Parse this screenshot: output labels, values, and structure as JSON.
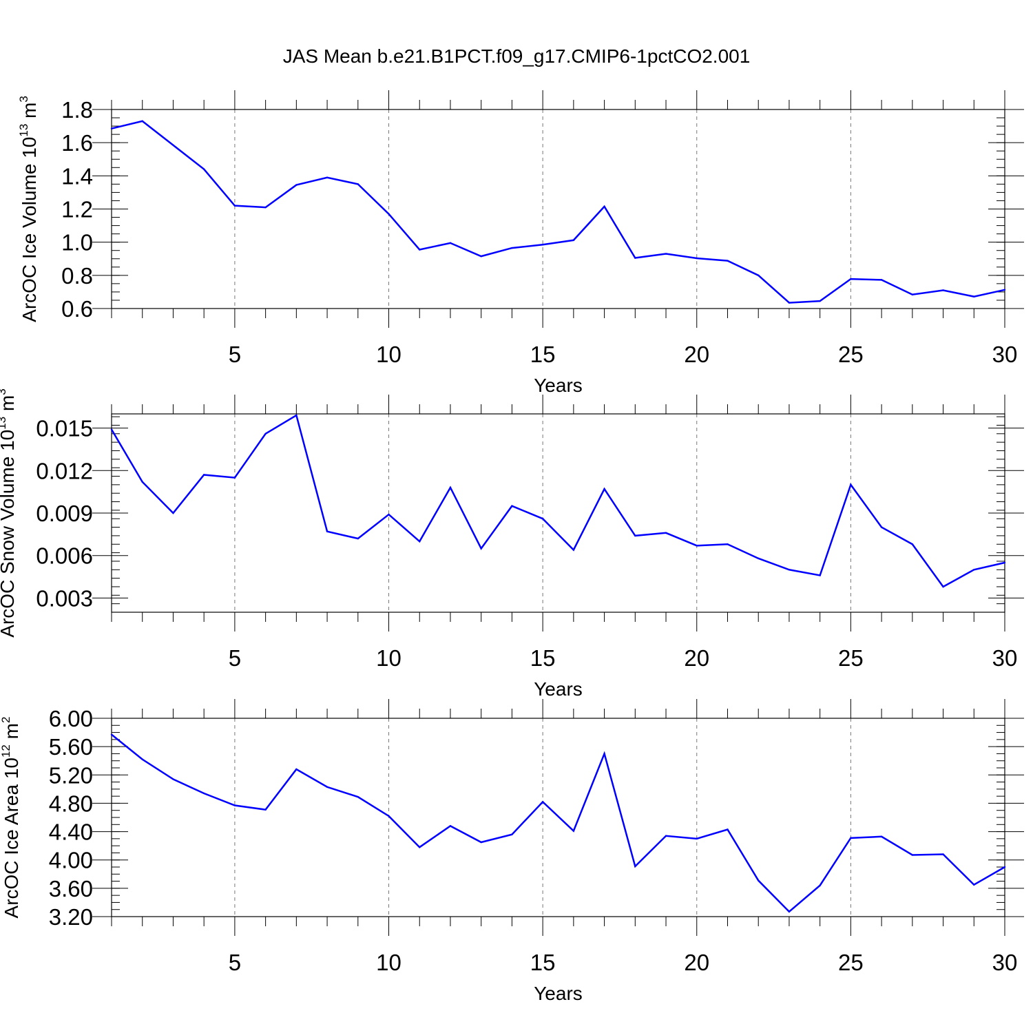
{
  "figure": {
    "title": "JAS Mean b.e21.B1PCT.f09_g17.CMIP6-1pctCO2.001",
    "line_color": "#0000ff",
    "grid_color": "#777777",
    "axis_color": "#000000"
  },
  "chart_data": [
    {
      "type": "line",
      "title": "",
      "xlabel": "Years",
      "ylabel_parts": [
        "ArcOC Ice Volume 10",
        "13",
        " m",
        "3"
      ],
      "xlim": [
        1,
        30
      ],
      "ylim": [
        0.6,
        1.8
      ],
      "xticks": [
        5,
        10,
        15,
        20,
        25,
        30
      ],
      "xtick_labels": [
        "5",
        "10",
        "15",
        "20",
        "25",
        "30"
      ],
      "yticks": [
        0.6,
        0.8,
        1.0,
        1.2,
        1.4,
        1.6,
        1.8
      ],
      "ytick_labels": [
        "0.6",
        "0.8",
        "1.0",
        "1.2",
        "1.4",
        "1.6",
        "1.8"
      ],
      "y_minor_step": 0.05,
      "grid": "vertical dashed at major x ticks",
      "series": [
        {
          "name": "ArcOC Ice Volume",
          "x": [
            1,
            2,
            3,
            4,
            5,
            6,
            7,
            8,
            9,
            10,
            11,
            12,
            13,
            14,
            15,
            16,
            17,
            18,
            19,
            20,
            21,
            22,
            23,
            24,
            25,
            26,
            27,
            28,
            29,
            30
          ],
          "values": [
            1.685,
            1.73,
            1.585,
            1.44,
            1.22,
            1.21,
            1.345,
            1.39,
            1.35,
            1.17,
            0.955,
            0.995,
            0.915,
            0.965,
            0.985,
            1.012,
            1.215,
            0.905,
            0.93,
            0.903,
            0.888,
            0.8,
            0.635,
            0.645,
            0.778,
            0.773,
            0.684,
            0.71,
            0.672,
            0.713
          ]
        }
      ]
    },
    {
      "type": "line",
      "title": "",
      "xlabel": "Years",
      "ylabel_parts": [
        "ArcOC Snow Volume 10",
        "13",
        " m",
        "3"
      ],
      "xlim": [
        1,
        30
      ],
      "ylim": [
        0.002,
        0.016
      ],
      "xticks": [
        5,
        10,
        15,
        20,
        25,
        30
      ],
      "xtick_labels": [
        "5",
        "10",
        "15",
        "20",
        "25",
        "30"
      ],
      "yticks": [
        0.003,
        0.006,
        0.009,
        0.012,
        0.015
      ],
      "ytick_labels": [
        "0.003",
        "0.006",
        "0.009",
        "0.012",
        "0.015"
      ],
      "y_minor_step": 0.0006,
      "grid": "vertical dashed at major x ticks",
      "series": [
        {
          "name": "ArcOC Snow Volume",
          "x": [
            1,
            2,
            3,
            4,
            5,
            6,
            7,
            8,
            9,
            10,
            11,
            12,
            13,
            14,
            15,
            16,
            17,
            18,
            19,
            20,
            21,
            22,
            23,
            24,
            25,
            26,
            27,
            28,
            29,
            30
          ],
          "values": [
            0.0149,
            0.0112,
            0.009,
            0.0117,
            0.0115,
            0.0146,
            0.0159,
            0.0077,
            0.0072,
            0.0089,
            0.007,
            0.0108,
            0.0065,
            0.0095,
            0.0086,
            0.0064,
            0.0107,
            0.0074,
            0.0076,
            0.0067,
            0.0068,
            0.0058,
            0.005,
            0.0046,
            0.011,
            0.008,
            0.0068,
            0.0038,
            0.005,
            0.0055
          ]
        }
      ]
    },
    {
      "type": "line",
      "title": "",
      "xlabel": "Years",
      "ylabel_parts": [
        "ArcOC Ice Area 10",
        "12",
        " m",
        "2"
      ],
      "xlim": [
        1,
        30
      ],
      "ylim": [
        3.2,
        6.0
      ],
      "xticks": [
        5,
        10,
        15,
        20,
        25,
        30
      ],
      "xtick_labels": [
        "5",
        "10",
        "15",
        "20",
        "25",
        "30"
      ],
      "yticks": [
        3.2,
        3.6,
        4.0,
        4.4,
        4.8,
        5.2,
        5.6,
        6.0
      ],
      "ytick_labels": [
        "3.20",
        "3.60",
        "4.00",
        "4.40",
        "4.80",
        "5.20",
        "5.60",
        "6.00"
      ],
      "y_minor_step": 0.1,
      "grid": "vertical dashed at major x ticks",
      "series": [
        {
          "name": "ArcOC Ice Area",
          "x": [
            1,
            2,
            3,
            4,
            5,
            6,
            7,
            8,
            9,
            10,
            11,
            12,
            13,
            14,
            15,
            16,
            17,
            18,
            19,
            20,
            21,
            22,
            23,
            24,
            25,
            26,
            27,
            28,
            29,
            30
          ],
          "values": [
            5.77,
            5.42,
            5.14,
            4.94,
            4.77,
            4.71,
            5.28,
            5.03,
            4.89,
            4.62,
            4.18,
            4.48,
            4.25,
            4.36,
            4.82,
            4.41,
            5.5,
            3.91,
            4.34,
            4.3,
            4.43,
            3.71,
            3.27,
            3.64,
            4.31,
            4.33,
            4.07,
            4.08,
            3.65,
            3.9
          ]
        }
      ]
    }
  ]
}
